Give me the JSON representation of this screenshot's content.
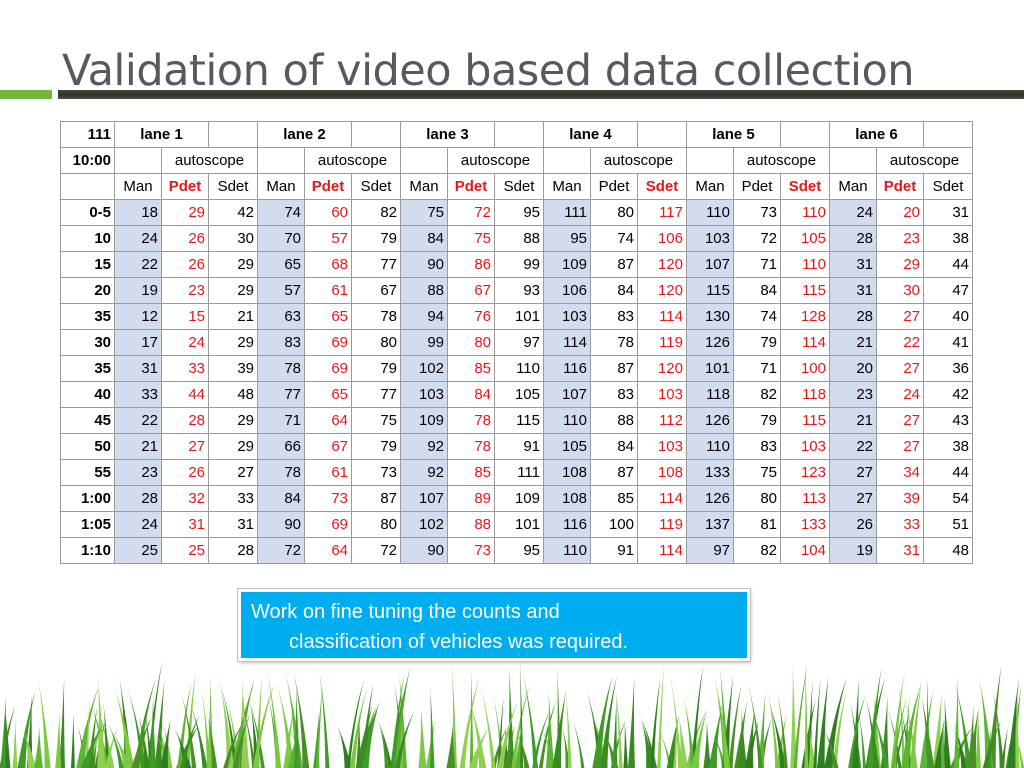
{
  "title": "Validation of video based data collection",
  "table": {
    "corner_top": "111",
    "corner_mid": "10:00",
    "lanes": [
      "lane 1",
      "lane 2",
      "lane 3",
      "lane 4",
      "lane 5",
      "lane 6"
    ],
    "method_label": "autoscope",
    "column_headers": [
      "Man",
      "Pdet",
      "Sdet"
    ],
    "red_header_columns": [
      "Pdet",
      "Pdet",
      "Pdet",
      "Sdet",
      "Sdet",
      "Pdet"
    ],
    "rows": [
      {
        "label": "0-5",
        "values": [
          18,
          29,
          42,
          74,
          60,
          82,
          75,
          72,
          95,
          111,
          80,
          117,
          110,
          73,
          110,
          24,
          20,
          31
        ]
      },
      {
        "label": "10",
        "values": [
          24,
          26,
          30,
          70,
          57,
          79,
          84,
          75,
          88,
          95,
          74,
          106,
          103,
          72,
          105,
          28,
          23,
          38
        ]
      },
      {
        "label": "15",
        "values": [
          22,
          26,
          29,
          65,
          68,
          77,
          90,
          86,
          99,
          109,
          87,
          120,
          107,
          71,
          110,
          31,
          29,
          44
        ]
      },
      {
        "label": "20",
        "values": [
          19,
          23,
          29,
          57,
          61,
          67,
          88,
          67,
          93,
          106,
          84,
          120,
          115,
          84,
          115,
          31,
          30,
          47
        ]
      },
      {
        "label": "35",
        "values": [
          12,
          15,
          21,
          63,
          65,
          78,
          94,
          76,
          101,
          103,
          83,
          114,
          130,
          74,
          128,
          28,
          27,
          40
        ]
      },
      {
        "label": "30",
        "values": [
          17,
          24,
          29,
          83,
          69,
          80,
          99,
          80,
          97,
          114,
          78,
          119,
          126,
          79,
          114,
          21,
          22,
          41
        ]
      },
      {
        "label": "35",
        "values": [
          31,
          33,
          39,
          78,
          69,
          79,
          102,
          85,
          110,
          116,
          87,
          120,
          101,
          71,
          100,
          20,
          27,
          36
        ]
      },
      {
        "label": "40",
        "values": [
          33,
          44,
          48,
          77,
          65,
          77,
          103,
          84,
          105,
          107,
          83,
          103,
          118,
          82,
          118,
          23,
          24,
          42
        ]
      },
      {
        "label": "45",
        "values": [
          22,
          28,
          29,
          71,
          64,
          75,
          109,
          78,
          115,
          110,
          88,
          112,
          126,
          79,
          115,
          21,
          27,
          43
        ]
      },
      {
        "label": "50",
        "values": [
          21,
          27,
          29,
          66,
          67,
          79,
          92,
          78,
          91,
          105,
          84,
          103,
          110,
          83,
          103,
          22,
          27,
          38
        ]
      },
      {
        "label": "55",
        "values": [
          23,
          26,
          27,
          78,
          61,
          73,
          92,
          85,
          111,
          108,
          87,
          108,
          133,
          75,
          123,
          27,
          34,
          44
        ]
      },
      {
        "label": "1:00",
        "values": [
          28,
          32,
          33,
          84,
          73,
          87,
          107,
          89,
          109,
          108,
          85,
          114,
          126,
          80,
          113,
          27,
          39,
          54
        ]
      },
      {
        "label": "1:05",
        "values": [
          24,
          31,
          31,
          90,
          69,
          80,
          102,
          88,
          101,
          116,
          100,
          119,
          137,
          81,
          133,
          26,
          33,
          51
        ]
      },
      {
        "label": "1:10",
        "values": [
          25,
          25,
          28,
          72,
          64,
          72,
          90,
          73,
          95,
          110,
          91,
          114,
          97,
          82,
          104,
          19,
          31,
          48
        ]
      }
    ]
  },
  "note": {
    "line1": "Work on fine tuning the counts and",
    "line2": "classification of vehicles was required."
  },
  "colors": {
    "accent_green": "#74b53d",
    "rule_dark": "#2b3428",
    "manual_cell": "#d3dcee",
    "detector_red": "#e3181d",
    "note_blue": "#00aeef"
  }
}
